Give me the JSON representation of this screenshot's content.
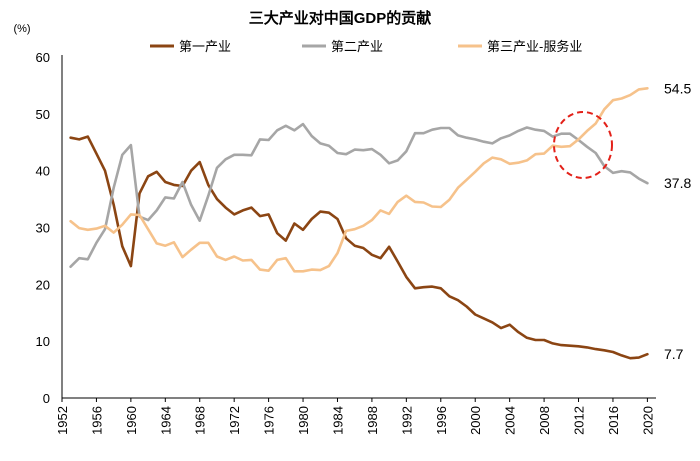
{
  "chart_data": {
    "type": "line",
    "title": "三大产业对中国GDP的贡献",
    "unit_label": "(%)",
    "xlabel": "",
    "ylabel": "",
    "ylim": [
      0,
      60
    ],
    "yticks": [
      0,
      10,
      20,
      30,
      40,
      50,
      60
    ],
    "xlim": [
      1952,
      2021
    ],
    "xticks": [
      "1952",
      "1956",
      "1960",
      "1964",
      "1968",
      "1972",
      "1976",
      "1980",
      "1984",
      "1988",
      "1992",
      "1996",
      "2000",
      "2004",
      "2008",
      "2012",
      "2016",
      "2020"
    ],
    "x": [
      1953,
      1954,
      1955,
      1956,
      1957,
      1958,
      1959,
      1960,
      1961,
      1962,
      1963,
      1964,
      1965,
      1966,
      1967,
      1968,
      1969,
      1970,
      1971,
      1972,
      1973,
      1974,
      1975,
      1976,
      1977,
      1978,
      1979,
      1980,
      1981,
      1982,
      1983,
      1984,
      1985,
      1986,
      1987,
      1988,
      1989,
      1990,
      1991,
      1992,
      1993,
      1994,
      1995,
      1996,
      1997,
      1998,
      1999,
      2000,
      2001,
      2002,
      2003,
      2004,
      2005,
      2006,
      2007,
      2008,
      2009,
      2010,
      2011,
      2012,
      2013,
      2014,
      2015,
      2016,
      2017,
      2018,
      2019,
      2020
    ],
    "series": [
      {
        "name": "第一产业",
        "color": "#8B4513",
        "end_label": "7.7",
        "values": [
          45.8,
          45.5,
          46.0,
          43.0,
          40.0,
          34.0,
          26.7,
          23.2,
          36.0,
          39.0,
          39.8,
          38.0,
          37.5,
          37.3,
          40.0,
          41.5,
          37.5,
          35.0,
          33.5,
          32.3,
          33.0,
          33.5,
          32.0,
          32.3,
          29.0,
          27.7,
          30.7,
          29.6,
          31.5,
          32.8,
          32.6,
          31.5,
          28.1,
          26.8,
          26.4,
          25.2,
          24.6,
          26.6,
          24.0,
          21.3,
          19.3,
          19.5,
          19.6,
          19.3,
          17.9,
          17.2,
          16.1,
          14.7,
          14.0,
          13.3,
          12.3,
          12.9,
          11.6,
          10.6,
          10.2,
          10.2,
          9.6,
          9.3,
          9.2,
          9.1,
          8.9,
          8.6,
          8.4,
          8.1,
          7.5,
          7.0,
          7.1,
          7.7
        ]
      },
      {
        "name": "第二产业",
        "color": "#A6A6A6",
        "end_label": "37.8",
        "values": [
          23.1,
          24.6,
          24.4,
          27.3,
          29.7,
          37.0,
          42.8,
          44.5,
          31.9,
          31.3,
          33.0,
          35.3,
          35.1,
          38.0,
          34.0,
          31.2,
          35.6,
          40.5,
          42.0,
          42.8,
          42.8,
          42.7,
          45.5,
          45.4,
          47.1,
          47.9,
          47.1,
          48.2,
          46.1,
          44.8,
          44.4,
          43.1,
          42.9,
          43.7,
          43.6,
          43.8,
          42.8,
          41.3,
          41.8,
          43.4,
          46.6,
          46.6,
          47.2,
          47.5,
          47.5,
          46.2,
          45.8,
          45.5,
          45.1,
          44.8,
          45.7,
          46.2,
          47.0,
          47.6,
          47.2,
          47.0,
          46.0,
          46.5,
          46.5,
          45.4,
          44.2,
          43.1,
          40.8,
          39.6,
          39.9,
          39.7,
          38.6,
          37.8
        ]
      },
      {
        "name": "第三产业-服务业",
        "color": "#F6C28B",
        "end_label": "54.5",
        "values": [
          31.1,
          29.9,
          29.6,
          29.8,
          30.3,
          29.1,
          30.5,
          32.3,
          32.2,
          29.7,
          27.2,
          26.8,
          27.4,
          24.8,
          26.1,
          27.3,
          27.3,
          24.9,
          24.3,
          24.9,
          24.2,
          24.3,
          22.6,
          22.4,
          24.3,
          24.6,
          22.3,
          22.3,
          22.6,
          22.5,
          23.2,
          25.5,
          29.4,
          29.7,
          30.3,
          31.3,
          33.0,
          32.4,
          34.5,
          35.6,
          34.5,
          34.4,
          33.7,
          33.6,
          34.9,
          37.0,
          38.4,
          39.8,
          41.3,
          42.3,
          42.0,
          41.2,
          41.4,
          41.8,
          42.9,
          43.0,
          44.4,
          44.2,
          44.3,
          45.5,
          47.0,
          48.3,
          50.8,
          52.4,
          52.7,
          53.3,
          54.3,
          54.5
        ]
      }
    ],
    "annotation": "dashed red circle around the crossover of 第二产业 and 第三产业-服务业 near 2012"
  }
}
